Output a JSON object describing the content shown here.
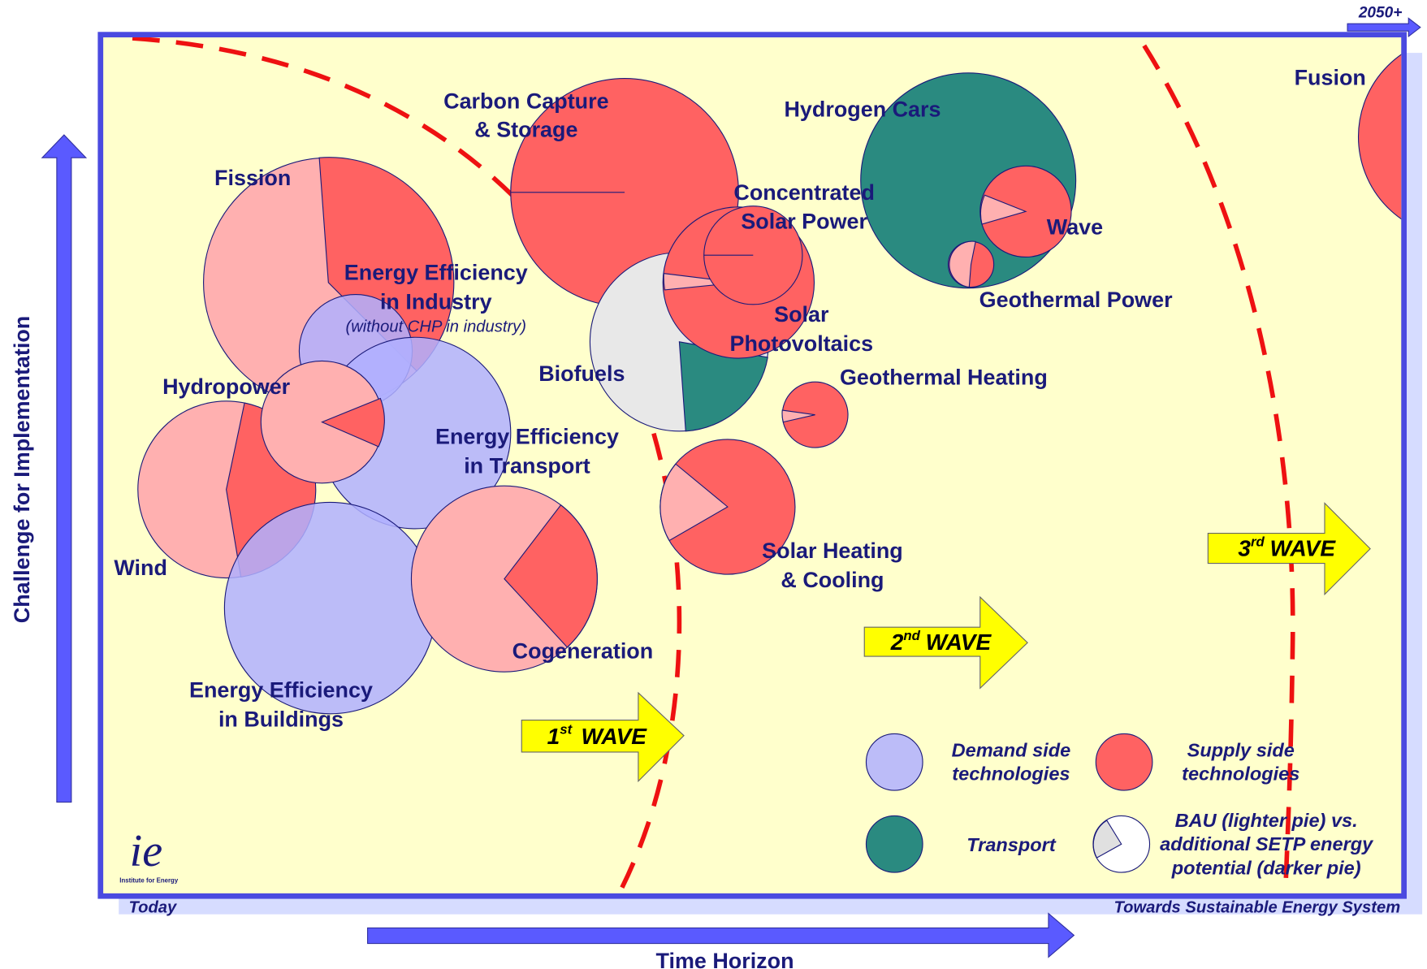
{
  "axes": {
    "y_label": "Challenge for Implementation",
    "x_label": "Time Horizon",
    "x_start": "Today",
    "x_end": "Towards Sustainable Energy System",
    "corner": "2050+"
  },
  "technologies": [
    {
      "lines": [
        "Fission"
      ]
    },
    {
      "lines": [
        "Energy Efficiency",
        "in Industry"
      ],
      "note": "(without CHP in industry)"
    },
    {
      "lines": [
        "Hydropower"
      ]
    },
    {
      "lines": [
        "Wind"
      ]
    },
    {
      "lines": [
        "Energy Efficiency",
        "in Transport"
      ]
    },
    {
      "lines": [
        "Energy Efficiency",
        "in Buildings"
      ]
    },
    {
      "lines": [
        "Cogeneration"
      ]
    },
    {
      "lines": [
        "Carbon Capture",
        "& Storage"
      ]
    },
    {
      "lines": [
        "Biofuels"
      ]
    },
    {
      "lines": [
        "Concentrated",
        "Solar Power"
      ]
    },
    {
      "lines": [
        "Solar",
        "Photovoltaics"
      ]
    },
    {
      "lines": [
        "Geothermal Heating"
      ]
    },
    {
      "lines": [
        "Solar Heating",
        "& Cooling"
      ]
    },
    {
      "lines": [
        "Hydrogen Cars"
      ]
    },
    {
      "lines": [
        "Wave"
      ]
    },
    {
      "lines": [
        "Geothermal Power"
      ]
    },
    {
      "lines": [
        "Fusion"
      ]
    }
  ],
  "waves": [
    {
      "number": "1",
      "suffix": "st",
      "word": "WAVE"
    },
    {
      "number": "2",
      "suffix": "nd",
      "word": "WAVE"
    },
    {
      "number": "3",
      "suffix": "rd",
      "word": "WAVE"
    }
  ],
  "legend": [
    {
      "lines": [
        "Demand side",
        "technologies"
      ]
    },
    {
      "lines": [
        "Supply side",
        "technologies"
      ]
    },
    {
      "lines": [
        "Transport"
      ]
    },
    {
      "lines": [
        "BAU (lighter pie) vs.",
        "additional SETP energy",
        "potential (darker pie)"
      ]
    }
  ],
  "logo": "Institute for Energy"
}
